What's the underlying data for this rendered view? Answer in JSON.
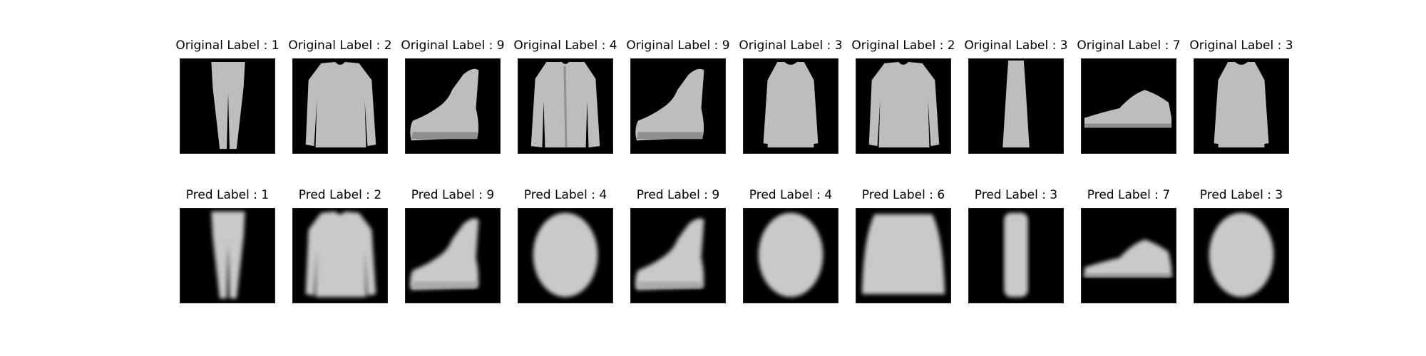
{
  "original": {
    "labels": [
      "Original Label : 1",
      "Original Label : 2",
      "Original Label : 9",
      "Original Label : 4",
      "Original Label : 9",
      "Original Label : 3",
      "Original Label : 2",
      "Original Label : 3",
      "Original Label : 7",
      "Original Label : 3"
    ],
    "items": [
      "trouser",
      "pullover",
      "boot",
      "coat",
      "boot",
      "dress",
      "pullover",
      "dress-narrow",
      "sneaker",
      "dress"
    ]
  },
  "predicted": {
    "labels": [
      "Pred Label : 1",
      "Pred Label : 2",
      "Pred Label : 9",
      "Pred Label : 4",
      "Pred Label : 9",
      "Pred Label : 4",
      "Pred Label : 6",
      "Pred Label : 3",
      "Pred Label : 7",
      "Pred Label : 3"
    ],
    "items": [
      "trouser",
      "pullover",
      "boot",
      "blob",
      "boot",
      "blob",
      "blob-wide",
      "column",
      "sneaker",
      "blob"
    ]
  },
  "colors": {
    "background": "#000000",
    "garment": "#bdbdbd",
    "reconstruction": "#c8c8c8"
  }
}
